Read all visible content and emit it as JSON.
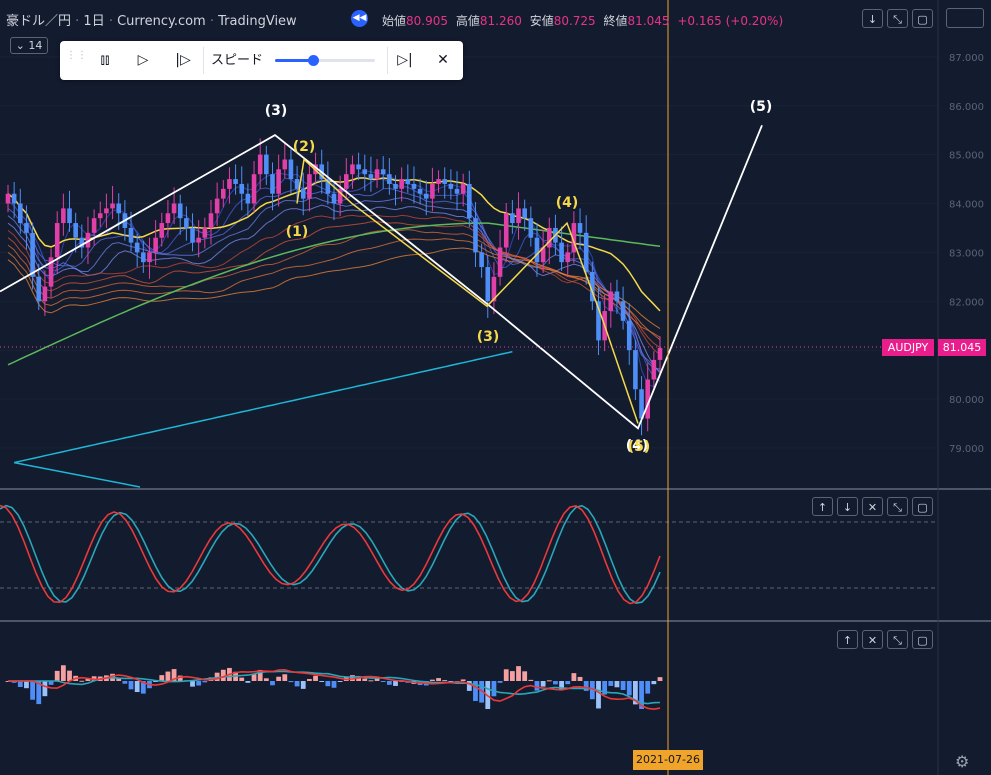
{
  "header": {
    "symbol": "豪ドル／円",
    "interval": "1日",
    "source": "Currency.com",
    "platform": "TradingView",
    "open_label": "始値",
    "open": "80.905",
    "high_label": "高値",
    "high": "81.260",
    "low_label": "安値",
    "low": "80.725",
    "close_label": "終値",
    "close": "81.045",
    "change": "+0.165 (+0.20%)"
  },
  "collapse_button": {
    "label": "14"
  },
  "replay_toolbar": {
    "speed_label": "スピード",
    "speed_level": 0.38
  },
  "price_label": {
    "symbol": "AUDJPY",
    "value": "81.045"
  },
  "crosshair_date": "2021-07-26",
  "colors": {
    "background": "#131b2e",
    "bull": "#e040a8",
    "bear": "#4f8ef7",
    "wave_white": "#ffffff",
    "wave_yellow": "#f5d94a",
    "ma_green": "#5cb85c",
    "ma_cyan": "#1eb8d6",
    "osc_red": "#e83a3a",
    "osc_teal": "#2aa6b8",
    "crosshair": "#f0a52a",
    "price_tag": "#e91e8c"
  },
  "chart_data": [
    {
      "type": "candlestick",
      "title": "",
      "ylim": [
        78.2,
        88.0
      ],
      "y_ticks": [
        "87.000",
        "86.000",
        "85.000",
        "84.000",
        "83.000",
        "82.000",
        "81.000",
        "80.000",
        "79.000"
      ],
      "closes": [
        84.2,
        84.0,
        83.6,
        83.4,
        82.5,
        82.0,
        82.3,
        82.9,
        83.6,
        83.9,
        83.6,
        83.3,
        83.1,
        83.4,
        83.7,
        83.8,
        83.9,
        84.0,
        83.8,
        83.5,
        83.2,
        83.0,
        82.8,
        83.0,
        83.3,
        83.6,
        83.8,
        84.0,
        83.7,
        83.5,
        83.2,
        83.3,
        83.5,
        83.8,
        84.1,
        84.3,
        84.5,
        84.4,
        84.2,
        84.0,
        84.6,
        85.0,
        84.6,
        84.2,
        84.7,
        84.9,
        84.5,
        84.3,
        84.1,
        84.6,
        84.8,
        84.5,
        84.2,
        84.0,
        84.3,
        84.6,
        84.8,
        84.7,
        84.6,
        84.5,
        84.7,
        84.6,
        84.4,
        84.3,
        84.5,
        84.4,
        84.3,
        84.2,
        84.1,
        84.4,
        84.5,
        84.4,
        84.3,
        84.2,
        84.4,
        83.7,
        83.0,
        82.7,
        82.0,
        82.5,
        83.1,
        83.8,
        83.6,
        83.9,
        83.7,
        83.3,
        82.8,
        83.1,
        83.5,
        83.2,
        82.8,
        83.0,
        83.6,
        83.4,
        82.6,
        82.0,
        81.2,
        81.8,
        82.2,
        82.0,
        81.6,
        81.0,
        80.2,
        79.6,
        80.4,
        80.8,
        81.045
      ],
      "wave_labels": [
        "(3)",
        "(2)",
        "(1)",
        "(3)",
        "(4)",
        "(5)",
        "(4)",
        "(5)"
      ]
    },
    {
      "type": "line",
      "title": "",
      "series_count": 2,
      "levels": [
        80,
        20
      ]
    },
    {
      "type": "line",
      "title": "",
      "series_count": 2,
      "histogram": true
    }
  ]
}
